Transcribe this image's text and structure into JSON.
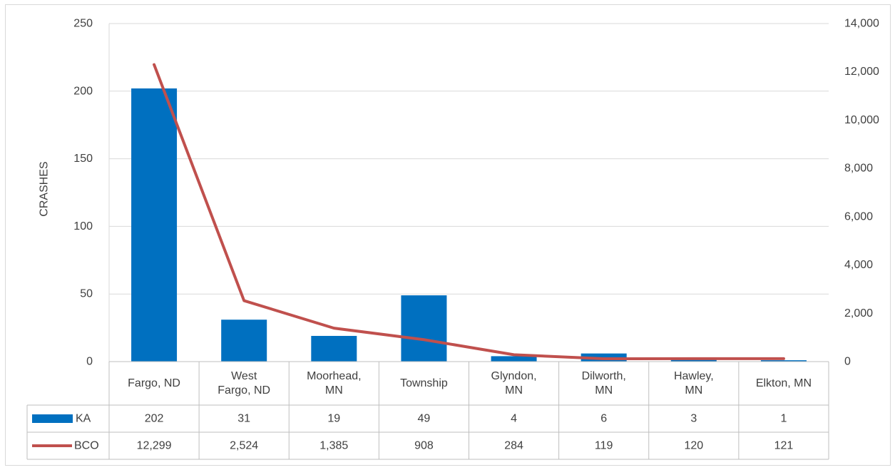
{
  "chart_data": {
    "type": "bar",
    "title": "",
    "xlabel": "",
    "ylabel": "CRASHES",
    "ylim": [
      0,
      250
    ],
    "y_ticks": [
      "0",
      "50",
      "100",
      "150",
      "200",
      "250"
    ],
    "y2lim": [
      0,
      14000
    ],
    "y2_ticks": [
      "0",
      "2,000",
      "4,000",
      "6,000",
      "8,000",
      "10,000",
      "12,000",
      "14,000"
    ],
    "grid": true,
    "legend": "data table rows (left)",
    "categories": [
      [
        "Fargo, ND"
      ],
      [
        "West",
        "Fargo, ND"
      ],
      [
        "Moorhead,",
        "MN"
      ],
      [
        "Township"
      ],
      [
        "Glyndon,",
        "MN"
      ],
      [
        "Dilworth,",
        "MN"
      ],
      [
        "Hawley,",
        "MN"
      ],
      [
        "Elkton, MN"
      ]
    ],
    "series": [
      {
        "name": "KA",
        "type": "bar",
        "axis": "left",
        "color": "#0070C0",
        "values": [
          202,
          31,
          19,
          49,
          4,
          6,
          3,
          1
        ],
        "labels": [
          "202",
          "31",
          "19",
          "49",
          "4",
          "6",
          "3",
          "1"
        ]
      },
      {
        "name": "BCO",
        "type": "line",
        "axis": "right",
        "color": "#C0504D",
        "values": [
          12299,
          2524,
          1385,
          908,
          284,
          119,
          120,
          121
        ],
        "labels": [
          "12,299",
          "2,524",
          "1,385",
          "908",
          "284",
          "119",
          "120",
          "121"
        ]
      }
    ]
  }
}
